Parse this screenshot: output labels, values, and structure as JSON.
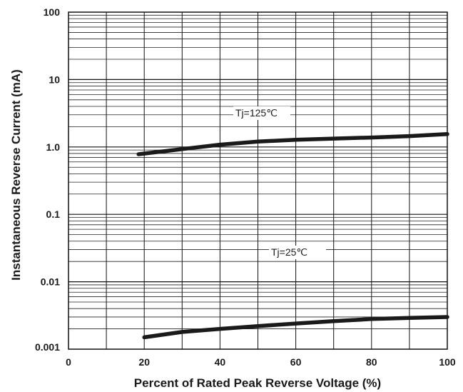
{
  "chart_data": {
    "type": "line",
    "xlabel": "Percent of Rated Peak Reverse Voltage (%)",
    "ylabel": "Instantaneous Reverse Current (mA)",
    "xlim": [
      0,
      100
    ],
    "ylim": [
      0.001,
      100
    ],
    "yscale": "log",
    "grid": true,
    "x_ticks": [
      0,
      20,
      40,
      60,
      80,
      100
    ],
    "x_tick_labels": [
      "0",
      "20",
      "40",
      "60",
      "80",
      "100"
    ],
    "y_ticks": [
      0.001,
      0.01,
      0.1,
      1.0,
      10,
      100
    ],
    "y_tick_labels": [
      "0.001",
      "0.01",
      "0.1",
      "1.0",
      "10",
      "100"
    ],
    "series": [
      {
        "name": "Tj=125℃",
        "x": [
          18.5,
          30,
          40,
          50,
          60,
          70,
          80,
          90,
          100
        ],
        "y": [
          0.78,
          0.93,
          1.08,
          1.2,
          1.28,
          1.33,
          1.38,
          1.45,
          1.55
        ]
      },
      {
        "name": "Tj=25℃",
        "x": [
          20,
          30,
          40,
          50,
          60,
          70,
          80,
          90,
          100
        ],
        "y": [
          0.0015,
          0.0018,
          0.002,
          0.0022,
          0.0024,
          0.0026,
          0.0028,
          0.0029,
          0.003
        ]
      }
    ]
  }
}
